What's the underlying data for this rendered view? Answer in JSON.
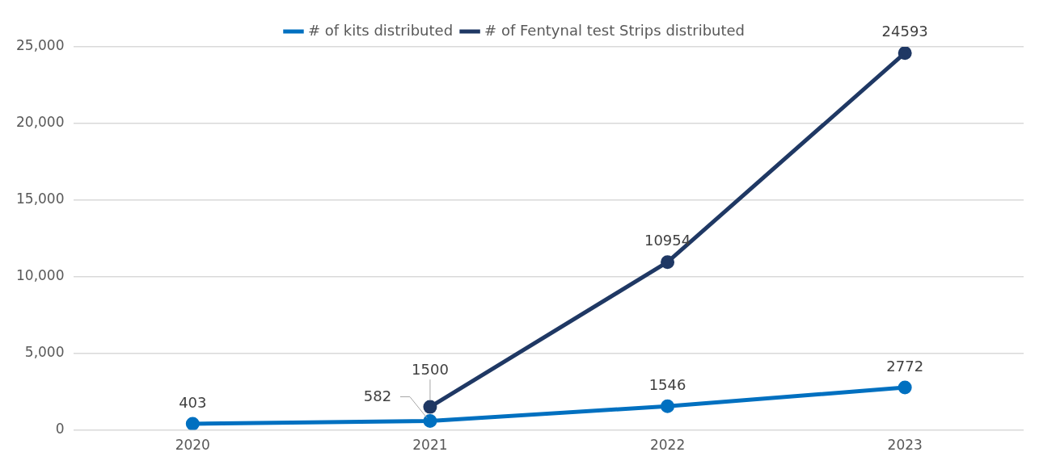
{
  "chart_data": {
    "type": "line",
    "categories": [
      "2020",
      "2021",
      "2022",
      "2023"
    ],
    "series": [
      {
        "name": "# of kits distributed",
        "color": "#0070c0",
        "values": [
          403,
          582,
          1546,
          2772
        ]
      },
      {
        "name": "# of Fentynal test Strips distributed",
        "color": "#1f3864",
        "values": [
          null,
          1500,
          10954,
          24593
        ]
      }
    ],
    "ylim": [
      0,
      25000
    ],
    "yticks": [
      {
        "value": 0,
        "label": "0"
      },
      {
        "value": 5000,
        "label": "5,000"
      },
      {
        "value": 10000,
        "label": "10,000"
      },
      {
        "value": 15000,
        "label": "15,000"
      },
      {
        "value": 20000,
        "label": "20,000"
      },
      {
        "value": 25000,
        "label": "25,000"
      }
    ],
    "grid": "y",
    "legend": "top",
    "marker": "circle",
    "line_style": "solid",
    "data_labels": true
  }
}
